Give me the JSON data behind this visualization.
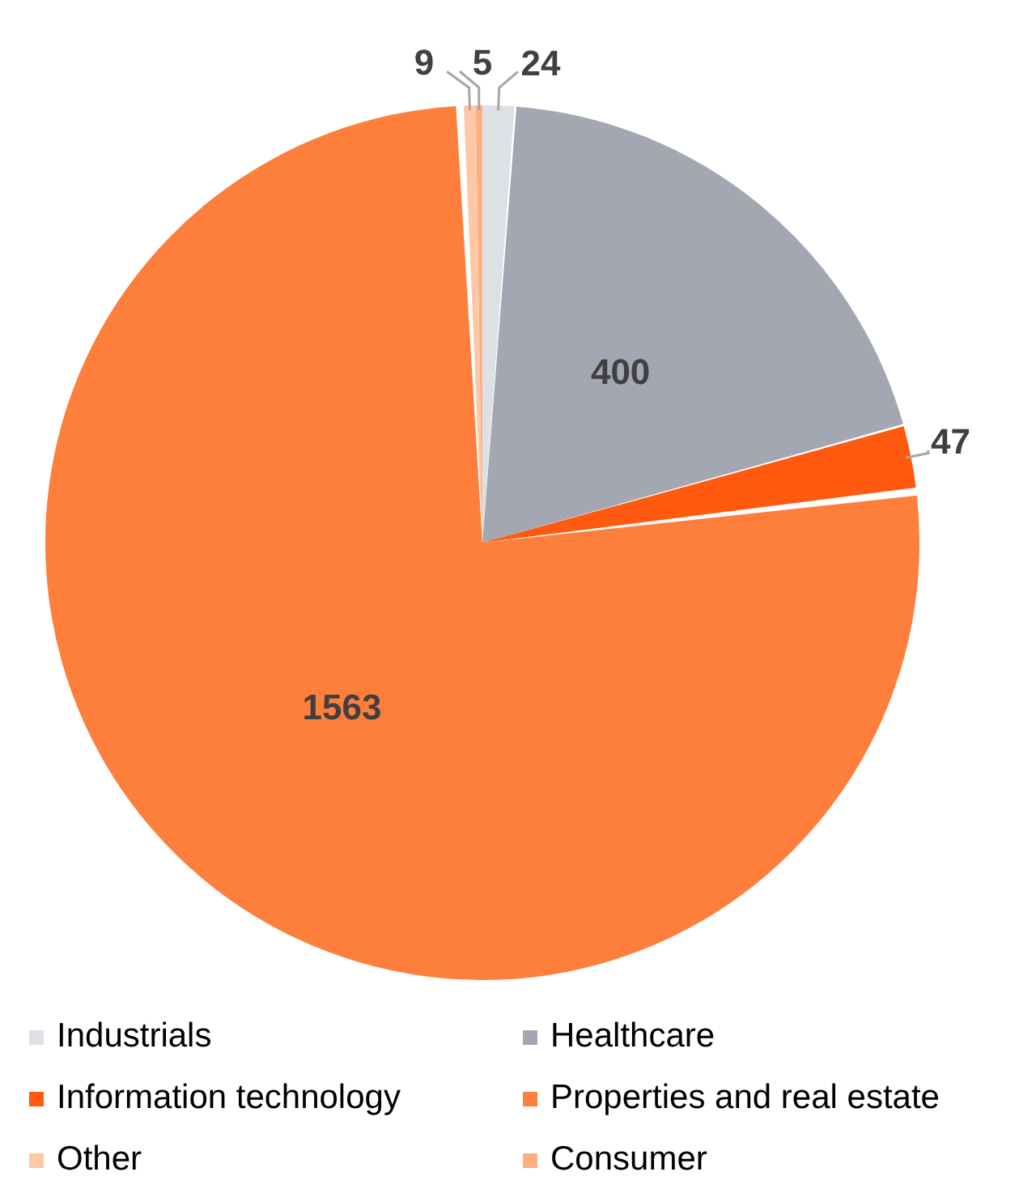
{
  "chart_data": {
    "type": "pie",
    "categories": [
      "Industrials",
      "Healthcare",
      "Information technology",
      "Properties and real estate",
      "Other",
      "Consumer"
    ],
    "values": [
      24,
      400,
      47,
      1563,
      9,
      5
    ],
    "colors": [
      "#dde1e5",
      "#a3a7b2",
      "#ff5a10",
      "#fe7e3b",
      "#fdc8a6",
      "#feaf80"
    ],
    "data_labels": true,
    "legend": "bottom"
  }
}
